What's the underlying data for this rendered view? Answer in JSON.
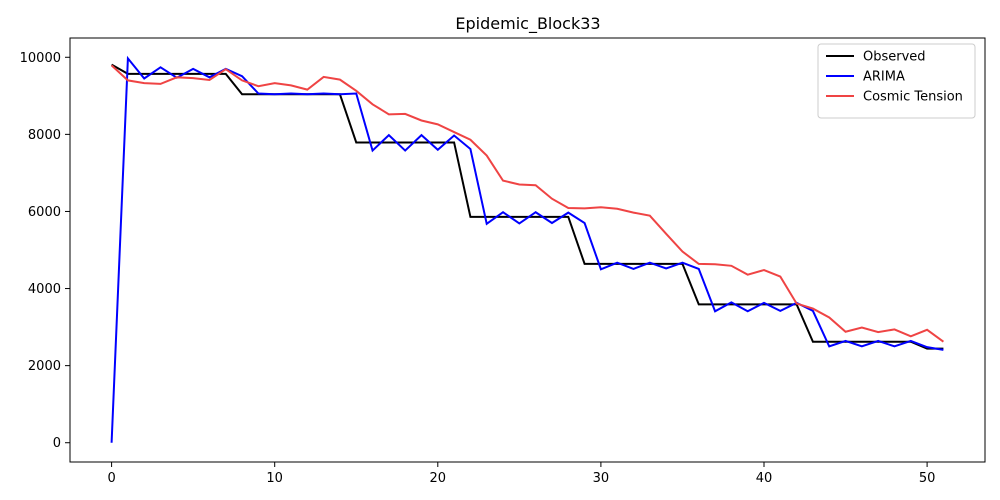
{
  "chart_data": {
    "type": "line",
    "title": "Epidemic_Block33",
    "xlabel": "",
    "ylabel": "",
    "xlim": [
      -2.55,
      53.55
    ],
    "ylim": [
      -500,
      10500
    ],
    "xticks": [
      0,
      10,
      20,
      30,
      40,
      50
    ],
    "yticks": [
      0,
      2000,
      4000,
      6000,
      8000,
      10000
    ],
    "grid": false,
    "legend_position": "upper-right",
    "x": [
      0,
      1,
      2,
      3,
      4,
      5,
      6,
      7,
      8,
      9,
      10,
      11,
      12,
      13,
      14,
      15,
      16,
      17,
      18,
      19,
      20,
      21,
      22,
      23,
      24,
      25,
      26,
      27,
      28,
      29,
      30,
      31,
      32,
      33,
      34,
      35,
      36,
      37,
      38,
      39,
      40,
      41,
      42,
      43,
      44,
      45,
      46,
      47,
      48,
      49,
      50,
      51
    ],
    "series": [
      {
        "name": "Observed",
        "color": "#000000",
        "values": [
          9810,
          9570,
          9570,
          9570,
          9570,
          9570,
          9570,
          9570,
          9040,
          9040,
          9040,
          9040,
          9040,
          9040,
          9040,
          7790,
          7790,
          7790,
          7790,
          7790,
          7790,
          7790,
          5860,
          5860,
          5860,
          5860,
          5860,
          5860,
          5860,
          4640,
          4640,
          4640,
          4640,
          4640,
          4640,
          4640,
          3590,
          3590,
          3590,
          3590,
          3590,
          3590,
          3590,
          2620,
          2620,
          2620,
          2620,
          2620,
          2620,
          2620,
          2440,
          2440
        ]
      },
      {
        "name": "ARIMA",
        "color": "#0000ff",
        "values": [
          0,
          9970,
          9450,
          9740,
          9470,
          9700,
          9480,
          9700,
          9510,
          9060,
          9040,
          9060,
          9040,
          9060,
          9040,
          9060,
          7580,
          7980,
          7580,
          7980,
          7600,
          7970,
          7620,
          5680,
          5980,
          5690,
          5980,
          5700,
          5970,
          5700,
          4500,
          4670,
          4510,
          4670,
          4520,
          4670,
          4510,
          3410,
          3640,
          3410,
          3630,
          3420,
          3630,
          3420,
          2500,
          2640,
          2500,
          2640,
          2500,
          2640,
          2480,
          2410
        ]
      },
      {
        "name": "Cosmic Tension",
        "color": "#ef4444",
        "values": [
          9790,
          9400,
          9330,
          9310,
          9480,
          9460,
          9410,
          9690,
          9400,
          9250,
          9330,
          9270,
          9160,
          9490,
          9420,
          9130,
          8780,
          8520,
          8530,
          8360,
          8260,
          8060,
          7860,
          7450,
          6800,
          6700,
          6680,
          6330,
          6090,
          6080,
          6110,
          6070,
          5970,
          5890,
          5420,
          4960,
          4640,
          4630,
          4590,
          4360,
          4480,
          4310,
          3610,
          3480,
          3250,
          2880,
          2990,
          2870,
          2940,
          2760,
          2930,
          2620
        ]
      }
    ]
  }
}
